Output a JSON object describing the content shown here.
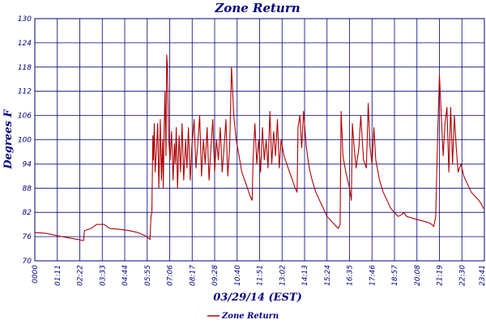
{
  "chart_data": {
    "type": "line",
    "title": "Zone Return",
    "xlabel": "03/29/14 (EST)",
    "ylabel": "Degrees F",
    "ylim": [
      70,
      130
    ],
    "xlim_hours": [
      0,
      24
    ],
    "grid": true,
    "legend_placement": "bottom-center",
    "x_ticks": [
      "0000",
      "01:11",
      "02:22",
      "03:33",
      "04:44",
      "05:55",
      "07:06",
      "08:17",
      "09:28",
      "10:40",
      "11:51",
      "13:02",
      "14:13",
      "15:24",
      "16:35",
      "17:46",
      "18:57",
      "20:08",
      "21:19",
      "22:30",
      "23:41"
    ],
    "y_ticks": [
      70,
      76,
      82,
      88,
      94,
      100,
      106,
      112,
      118,
      124,
      130
    ],
    "colors": {
      "series": "#b00000",
      "grid": "#000080",
      "text": "#000080"
    },
    "series": [
      {
        "name": "Zone Return",
        "points": [
          [
            0.0,
            77.0
          ],
          [
            0.6,
            76.8
          ],
          [
            1.2,
            76.2
          ],
          [
            1.8,
            75.7
          ],
          [
            2.4,
            75.2
          ],
          [
            2.6,
            75.0
          ],
          [
            2.65,
            77.5
          ],
          [
            3.0,
            78.0
          ],
          [
            3.3,
            79.0
          ],
          [
            3.7,
            79.0
          ],
          [
            4.0,
            78.0
          ],
          [
            4.5,
            77.8
          ],
          [
            5.0,
            77.5
          ],
          [
            5.5,
            77.0
          ],
          [
            5.9,
            76.2
          ],
          [
            6.15,
            75.3
          ],
          [
            6.2,
            81.0
          ],
          [
            6.25,
            82.0
          ],
          [
            6.3,
            101
          ],
          [
            6.33,
            95
          ],
          [
            6.38,
            104
          ],
          [
            6.42,
            92
          ],
          [
            6.5,
            98
          ],
          [
            6.56,
            104
          ],
          [
            6.62,
            88
          ],
          [
            6.7,
            105
          ],
          [
            6.76,
            90
          ],
          [
            6.82,
            100
          ],
          [
            6.86,
            88
          ],
          [
            6.9,
            102
          ],
          [
            6.95,
            112
          ],
          [
            7.0,
            96
          ],
          [
            7.04,
            121
          ],
          [
            7.08,
            118
          ],
          [
            7.15,
            100
          ],
          [
            7.22,
            95
          ],
          [
            7.3,
            102
          ],
          [
            7.38,
            90
          ],
          [
            7.45,
            99
          ],
          [
            7.5,
            94
          ],
          [
            7.55,
            103
          ],
          [
            7.62,
            88
          ],
          [
            7.7,
            101
          ],
          [
            7.78,
            92
          ],
          [
            7.86,
            104
          ],
          [
            7.95,
            90
          ],
          [
            8.05,
            100
          ],
          [
            8.12,
            93
          ],
          [
            8.2,
            103
          ],
          [
            8.3,
            90
          ],
          [
            8.38,
            98
          ],
          [
            8.5,
            105
          ],
          [
            8.6,
            93
          ],
          [
            8.7,
            99
          ],
          [
            8.8,
            106
          ],
          [
            8.9,
            91
          ],
          [
            9.0,
            100
          ],
          [
            9.1,
            94
          ],
          [
            9.2,
            103
          ],
          [
            9.3,
            90
          ],
          [
            9.4,
            98
          ],
          [
            9.5,
            105
          ],
          [
            9.6,
            92
          ],
          [
            9.7,
            100
          ],
          [
            9.8,
            95
          ],
          [
            9.9,
            103
          ],
          [
            10.0,
            92
          ],
          [
            10.1,
            98
          ],
          [
            10.2,
            105
          ],
          [
            10.3,
            91
          ],
          [
            10.4,
            98
          ],
          [
            10.5,
            118
          ],
          [
            10.55,
            113
          ],
          [
            10.62,
            106
          ],
          [
            10.75,
            100
          ],
          [
            10.9,
            96
          ],
          [
            11.05,
            92
          ],
          [
            11.2,
            90
          ],
          [
            11.35,
            88
          ],
          [
            11.5,
            86
          ],
          [
            11.6,
            85
          ],
          [
            11.65,
            95
          ],
          [
            11.75,
            104
          ],
          [
            11.85,
            94
          ],
          [
            11.95,
            100
          ],
          [
            12.05,
            92
          ],
          [
            12.15,
            103
          ],
          [
            12.25,
            95
          ],
          [
            12.35,
            100
          ],
          [
            12.45,
            93
          ],
          [
            12.55,
            107
          ],
          [
            12.65,
            94
          ],
          [
            12.75,
            102
          ],
          [
            12.85,
            96
          ],
          [
            12.95,
            105
          ],
          [
            13.05,
            93
          ],
          [
            13.15,
            100
          ],
          [
            13.3,
            96
          ],
          [
            13.45,
            94
          ],
          [
            13.6,
            92
          ],
          [
            13.75,
            90
          ],
          [
            13.9,
            88
          ],
          [
            14.0,
            87
          ],
          [
            14.05,
            103
          ],
          [
            14.15,
            106
          ],
          [
            14.25,
            98
          ],
          [
            14.35,
            107
          ],
          [
            14.5,
            98
          ],
          [
            14.65,
            93
          ],
          [
            14.8,
            90
          ],
          [
            15.0,
            87
          ],
          [
            15.2,
            85
          ],
          [
            15.4,
            83
          ],
          [
            15.6,
            81
          ],
          [
            15.8,
            80
          ],
          [
            16.0,
            79
          ],
          [
            16.2,
            78
          ],
          [
            16.3,
            79
          ],
          [
            16.35,
            107
          ],
          [
            16.45,
            96
          ],
          [
            16.6,
            92
          ],
          [
            16.8,
            88
          ],
          [
            16.9,
            85
          ],
          [
            16.95,
            104
          ],
          [
            17.05,
            98
          ],
          [
            17.15,
            93
          ],
          [
            17.3,
            98
          ],
          [
            17.4,
            106
          ],
          [
            17.55,
            95
          ],
          [
            17.7,
            93
          ],
          [
            17.8,
            109
          ],
          [
            17.9,
            98
          ],
          [
            18.0,
            94
          ],
          [
            18.1,
            103
          ],
          [
            18.2,
            95
          ],
          [
            18.4,
            90
          ],
          [
            18.6,
            87
          ],
          [
            18.8,
            85
          ],
          [
            19.0,
            83
          ],
          [
            19.2,
            82
          ],
          [
            19.4,
            81
          ],
          [
            19.6,
            81.5
          ],
          [
            19.7,
            82
          ],
          [
            19.85,
            81
          ],
          [
            20.2,
            80.5
          ],
          [
            20.6,
            80
          ],
          [
            21.0,
            79.5
          ],
          [
            21.2,
            79
          ],
          [
            21.3,
            78.5
          ],
          [
            21.4,
            81
          ],
          [
            21.5,
            100
          ],
          [
            21.6,
            116
          ],
          [
            21.7,
            106
          ],
          [
            21.8,
            96
          ],
          [
            21.9,
            104
          ],
          [
            22.0,
            108
          ],
          [
            22.1,
            92
          ],
          [
            22.2,
            108
          ],
          [
            22.3,
            94
          ],
          [
            22.4,
            106
          ],
          [
            22.5,
            98
          ],
          [
            22.6,
            92
          ],
          [
            22.75,
            94
          ],
          [
            22.9,
            91
          ],
          [
            23.1,
            89
          ],
          [
            23.3,
            87
          ],
          [
            23.5,
            86
          ],
          [
            23.7,
            85
          ],
          [
            23.85,
            84
          ],
          [
            23.95,
            83
          ],
          [
            24.0,
            83
          ]
        ]
      }
    ]
  }
}
